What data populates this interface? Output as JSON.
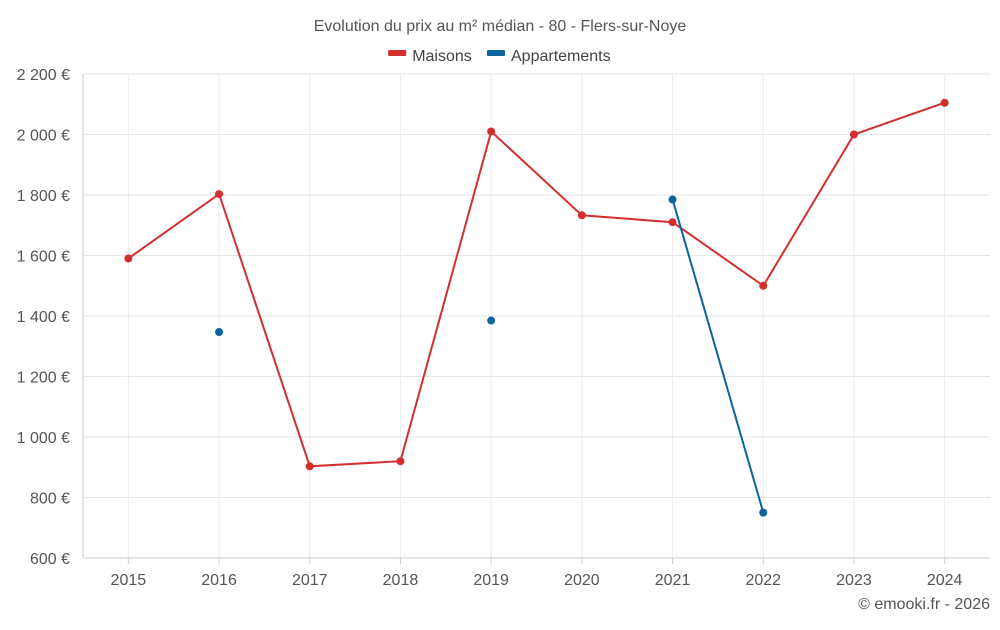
{
  "chart_data": {
    "type": "line",
    "title": "Evolution du prix au m² médian - 80 - Flers-sur-Noye",
    "categories": [
      "2015",
      "2016",
      "2017",
      "2018",
      "2019",
      "2020",
      "2021",
      "2022",
      "2023",
      "2024"
    ],
    "series": [
      {
        "name": "Maisons",
        "color": "#d32f2f",
        "values": [
          1590,
          1803,
          903,
          920,
          2010,
          1733,
          1710,
          1500,
          2000,
          2105
        ]
      },
      {
        "name": "Appartements",
        "color": "#0b64a0",
        "values": [
          null,
          1347,
          null,
          null,
          1385,
          null,
          1785,
          750,
          null,
          null
        ]
      }
    ],
    "ylim": [
      600,
      2200
    ],
    "yticks": [
      600,
      800,
      1000,
      1200,
      1400,
      1600,
      1800,
      2000,
      2200
    ],
    "ytick_labels": [
      "600 €",
      "800 €",
      "1 000 €",
      "1 200 €",
      "1 400 €",
      "1 600 €",
      "1 800 €",
      "2 000 €",
      "2 200 €"
    ],
    "grid": true,
    "legend_position": "top-center"
  },
  "credit": "© emooki.fr - 2026"
}
